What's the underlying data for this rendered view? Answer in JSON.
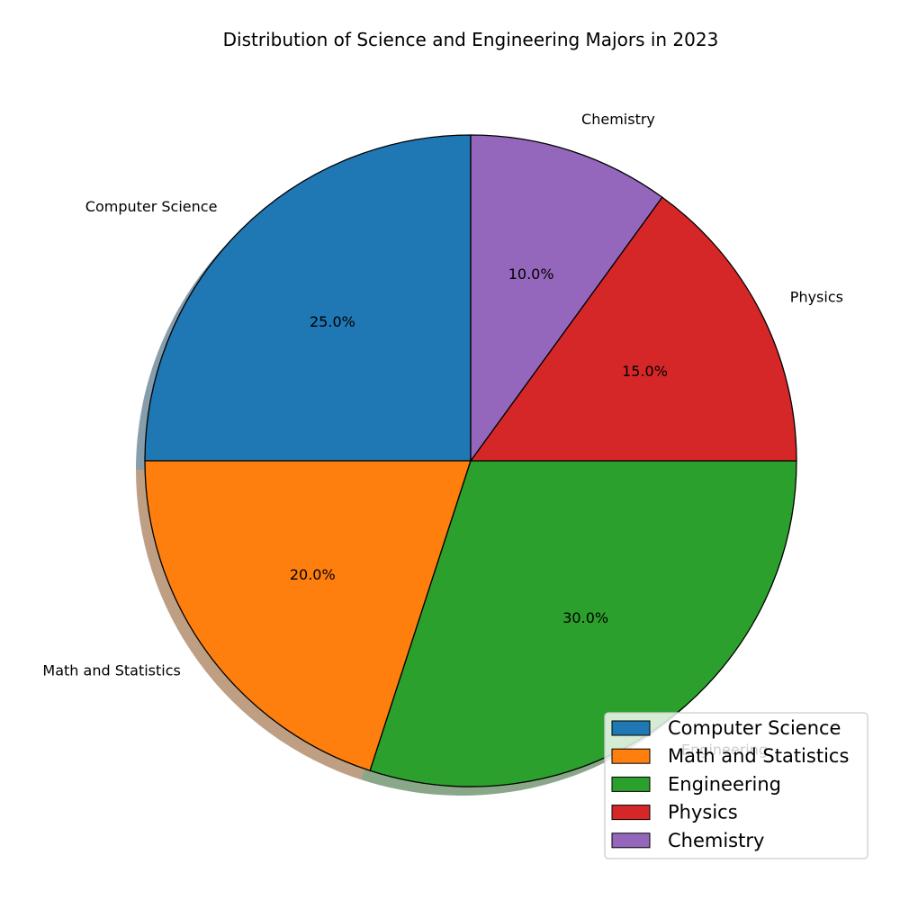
{
  "chart_data": {
    "type": "pie",
    "title": "Distribution of Science and Engineering Majors in 2023",
    "categories": [
      "Computer Science",
      "Math and Statistics",
      "Engineering",
      "Physics",
      "Chemistry"
    ],
    "values": [
      25.0,
      20.0,
      30.0,
      15.0,
      10.0
    ],
    "value_labels": [
      "25.0%",
      "20.0%",
      "30.0%",
      "15.0%",
      "10.0%"
    ],
    "colors": [
      "#1f77b4",
      "#ff7f0e",
      "#2ca02c",
      "#d62728",
      "#9467bd"
    ],
    "start_angle_deg": 90,
    "direction": "counterclockwise",
    "shadow": true,
    "legend": {
      "placement": "lower-right",
      "entries": [
        "Computer Science",
        "Math and Statistics",
        "Engineering",
        "Physics",
        "Chemistry"
      ]
    }
  }
}
